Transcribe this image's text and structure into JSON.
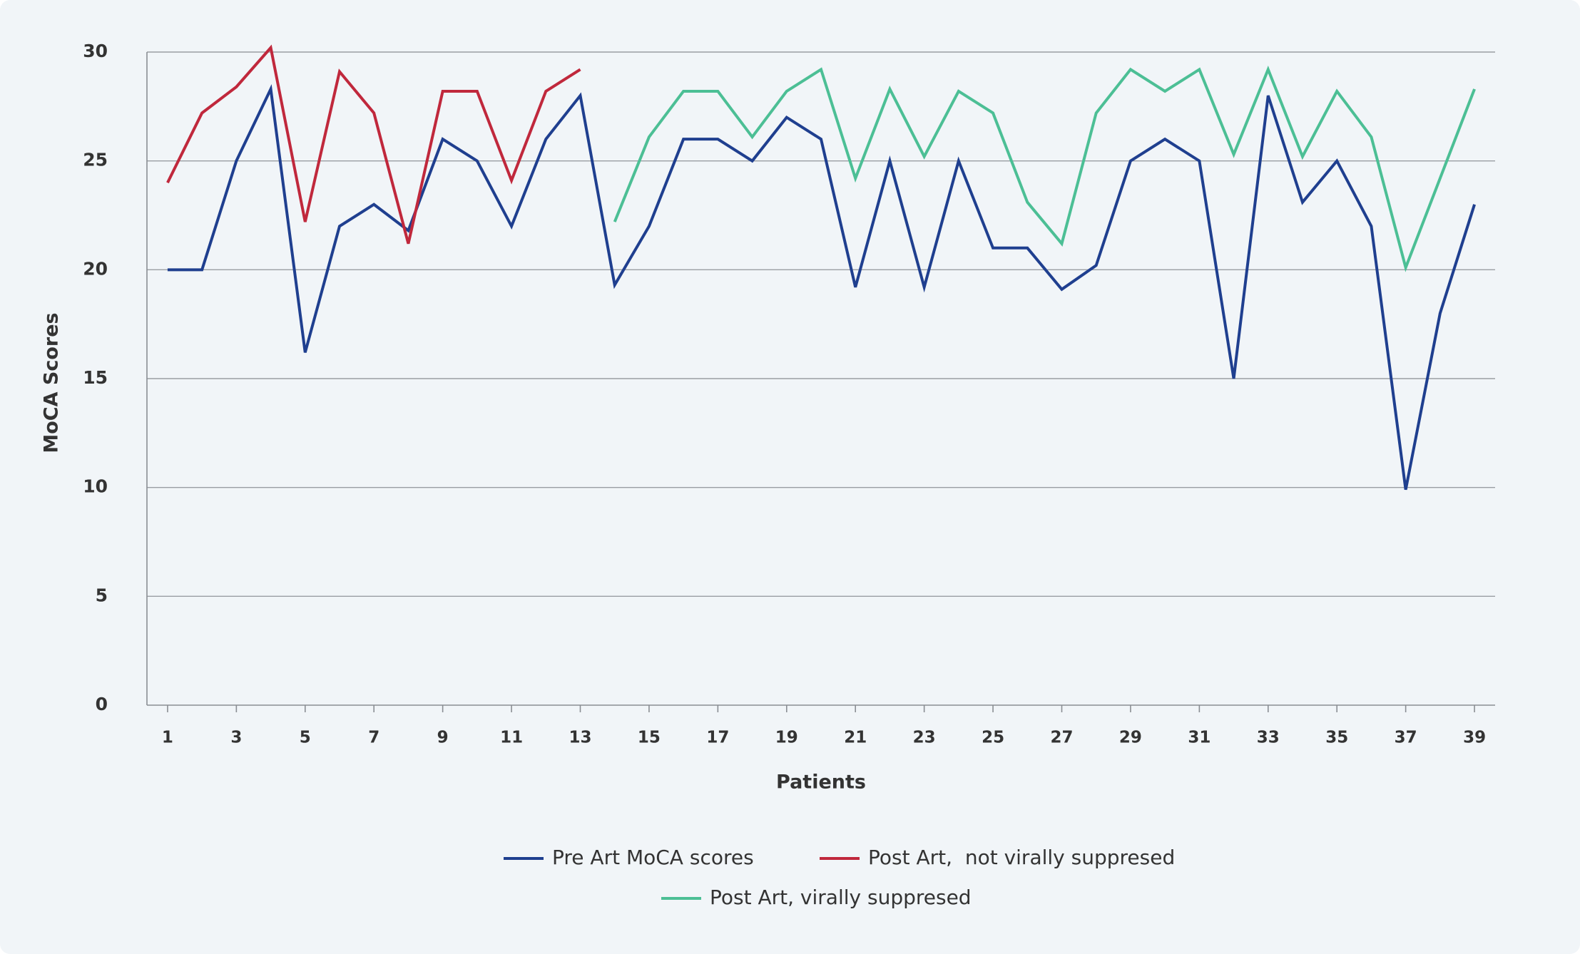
{
  "chart_data": {
    "type": "line",
    "x_label": "Patients",
    "y_label": "MoCA Scores",
    "x": [
      1,
      2,
      3,
      4,
      5,
      6,
      7,
      8,
      9,
      10,
      11,
      12,
      13,
      14,
      15,
      16,
      17,
      18,
      19,
      20,
      21,
      22,
      23,
      24,
      25,
      26,
      27,
      28,
      29,
      30,
      31,
      32,
      33,
      34,
      35,
      36,
      37,
      38,
      39
    ],
    "xlim": [
      0.4,
      39.6
    ],
    "xticks": [
      1,
      3,
      5,
      7,
      9,
      11,
      13,
      15,
      17,
      19,
      21,
      23,
      25,
      27,
      29,
      31,
      33,
      35,
      37,
      39
    ],
    "ylim": [
      0,
      30
    ],
    "yticks": [
      0,
      5,
      10,
      15,
      20,
      25,
      30
    ],
    "grid": true,
    "series": [
      {
        "name": "Pre Art MoCA scores",
        "color": "#1f3f8f",
        "values": [
          20,
          20,
          25,
          28.3,
          16.2,
          22,
          23,
          21.8,
          26,
          25,
          22,
          26,
          28,
          19.3,
          22,
          26,
          26,
          25,
          27,
          26,
          19.2,
          25,
          19.2,
          25,
          21,
          21,
          19.1,
          20.2,
          25,
          26,
          25,
          15,
          28,
          23.1,
          25,
          22,
          9.9,
          18,
          23
        ]
      },
      {
        "name": "Post Art,  not virally suppresed",
        "color": "#c0283c",
        "values": [
          24,
          27.2,
          28.4,
          30.2,
          22.2,
          29.1,
          27.2,
          21.2,
          28.2,
          28.2,
          24.1,
          28.2,
          29.2,
          null,
          null,
          null,
          null,
          null,
          null,
          null,
          null,
          null,
          null,
          null,
          null,
          null,
          null,
          null,
          null,
          null,
          null,
          null,
          null,
          null,
          null,
          null,
          null,
          null,
          null
        ]
      },
      {
        "name": "Post Art, virally suppresed",
        "color": "#4cbf95",
        "values": [
          null,
          null,
          null,
          null,
          null,
          null,
          null,
          null,
          null,
          null,
          null,
          null,
          null,
          22.2,
          26.1,
          28.2,
          28.2,
          26.1,
          28.2,
          29.2,
          24.2,
          28.3,
          25.2,
          28.2,
          27.2,
          23.1,
          21.2,
          27.2,
          29.2,
          28.2,
          29.2,
          25.3,
          29.2,
          25.2,
          28.2,
          26.1,
          20.1,
          24.2,
          28.3
        ]
      }
    ]
  }
}
